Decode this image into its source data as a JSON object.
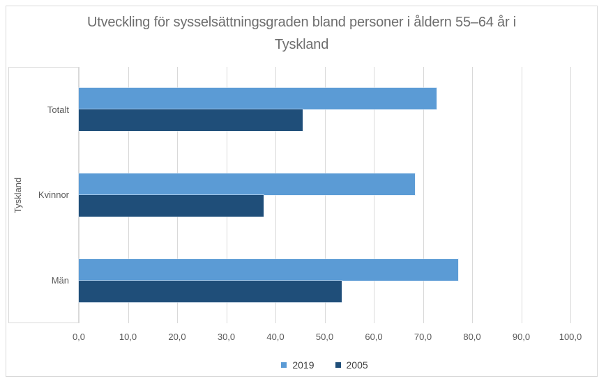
{
  "chart_data": {
    "type": "bar",
    "orientation": "horizontal",
    "title": "Utveckling för sysselsättningsgraden bland personer i åldern 55–64 år i Tyskland",
    "title_lines": [
      "Utveckling för sysselsättningsgraden bland personer i åldern 55–64 år i",
      "Tyskland"
    ],
    "group_label": "Tyskland",
    "categories": [
      "Totalt",
      "Kvinnor",
      "Män"
    ],
    "series": [
      {
        "name": "2019",
        "color": "#5B9BD5",
        "values": [
          72.7,
          68.3,
          77.1
        ]
      },
      {
        "name": "2005",
        "color": "#1F4E79",
        "values": [
          45.5,
          37.6,
          53.5
        ]
      }
    ],
    "xlim": [
      0,
      100
    ],
    "x_tick_labels": [
      "0,0",
      "10,0",
      "20,0",
      "30,0",
      "40,0",
      "50,0",
      "60,0",
      "70,0",
      "80,0",
      "90,0",
      "100,0"
    ],
    "grid": true,
    "legend_position": "bottom-center",
    "colors": {
      "gridline": "#D9D9D9",
      "frame_border": "#D9D9D9",
      "title_text": "#6E6E6E",
      "axis_text": "#595959",
      "legend_text": "#404040",
      "background": "#FFFFFF"
    }
  }
}
